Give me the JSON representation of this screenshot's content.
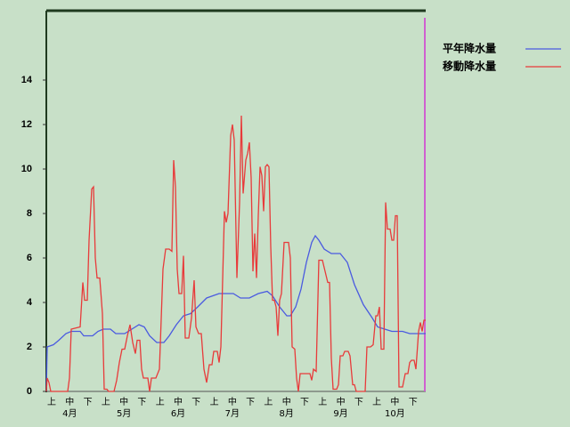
{
  "chart_data": {
    "type": "line",
    "legend": "top-right",
    "ylim": [
      0,
      17
    ],
    "yticks": [
      0,
      2,
      4,
      6,
      8,
      10,
      12,
      14
    ],
    "xlim": [
      0,
      213
    ],
    "categories": [
      "上",
      "中",
      "下",
      "上",
      "中",
      "下",
      "上",
      "中",
      "下",
      "上",
      "中",
      "下",
      "上",
      "中",
      "下",
      "上",
      "中",
      "下",
      "上",
      "中",
      "下"
    ],
    "months": [
      "4月",
      "5月",
      "6月",
      "7月",
      "8月",
      "9月",
      "10月"
    ],
    "series": [
      {
        "name": "平年降水量",
        "color": "#4a5ae0",
        "x": [
          0,
          0.5,
          4,
          7,
          11,
          14,
          19,
          21,
          26,
          29,
          32,
          36,
          39,
          44,
          48,
          52,
          55,
          58,
          62,
          66,
          69,
          73,
          77,
          81,
          85,
          90,
          97,
          105,
          109,
          114,
          119,
          124,
          127,
          131,
          135,
          137,
          140,
          143,
          146,
          149,
          151,
          153,
          156,
          160,
          165,
          169,
          173,
          178,
          183,
          186,
          190,
          194,
          200,
          204,
          213
        ],
        "values": [
          0,
          2.0,
          2.1,
          2.3,
          2.6,
          2.7,
          2.7,
          2.5,
          2.5,
          2.7,
          2.8,
          2.8,
          2.6,
          2.6,
          2.8,
          3.0,
          2.9,
          2.5,
          2.2,
          2.2,
          2.5,
          3.0,
          3.4,
          3.5,
          3.8,
          4.2,
          4.4,
          4.4,
          4.2,
          4.2,
          4.4,
          4.5,
          4.3,
          3.8,
          3.4,
          3.4,
          3.8,
          4.6,
          5.8,
          6.7,
          7.0,
          6.8,
          6.4,
          6.2,
          6.2,
          5.8,
          4.8,
          3.9,
          3.3,
          2.9,
          2.8,
          2.7,
          2.7,
          2.6,
          2.6
        ]
      },
      {
        "name": "移動降水量",
        "color": "#e83a3a",
        "x": [
          0,
          0.5,
          1.5,
          2.5,
          12,
          13,
          14,
          19,
          20.5,
          21.5,
          23,
          24,
          25.5,
          26.5,
          27.5,
          28.5,
          30,
          31.5,
          32.5,
          34,
          35,
          38,
          39.5,
          41,
          42.5,
          44,
          45.5,
          47,
          48.5,
          50,
          51,
          52.5,
          53.5,
          54.5,
          57,
          58,
          59,
          61.5,
          63.5,
          65.5,
          67,
          69,
          70.5,
          71.5,
          72.5,
          73.5,
          74.5,
          76,
          77,
          78,
          80,
          81.5,
          83,
          84,
          85.5,
          87,
          88.5,
          90,
          91.5,
          93,
          94,
          96,
          97,
          98,
          100,
          101,
          102,
          103.5,
          104.5,
          105.5,
          107,
          108.5,
          109.5,
          110.5,
          112,
          113,
          114,
          115,
          116,
          117,
          118,
          119,
          120,
          121,
          122,
          123,
          124,
          125,
          126,
          127,
          128,
          129,
          130,
          131,
          132,
          133.5,
          136,
          137,
          138,
          139.5,
          140.5,
          141.5,
          142.5,
          144,
          148,
          149,
          150,
          151.5,
          153,
          155,
          156.5,
          158,
          159,
          160,
          161,
          163,
          164,
          165,
          166.5,
          167.5,
          169.5,
          170.5,
          172,
          173,
          174,
          179,
          180,
          182,
          183.5,
          185,
          186,
          187,
          188,
          189.5,
          190.5,
          191.5,
          193,
          194,
          195,
          196,
          197,
          198,
          200,
          201.5,
          203,
          204,
          205,
          206.5,
          207.5,
          209,
          210,
          211,
          212,
          213
        ],
        "values": [
          0,
          0.6,
          0.4,
          0,
          0,
          0.6,
          2.8,
          2.9,
          4.9,
          4.1,
          4.1,
          6.8,
          9.1,
          9.2,
          6,
          5.1,
          5.1,
          3.5,
          0.1,
          0.1,
          0,
          0,
          0.5,
          1.3,
          1.9,
          1.9,
          2.5,
          3.0,
          2.2,
          1.7,
          2.3,
          2.3,
          1.0,
          0.6,
          0.6,
          0,
          0.6,
          0.6,
          1.0,
          5.5,
          6.4,
          6.4,
          6.3,
          10.4,
          9.2,
          5.5,
          4.4,
          4.4,
          6.1,
          2.4,
          2.4,
          3.3,
          5.0,
          2.9,
          2.6,
          2.6,
          1.0,
          0.4,
          1.2,
          1.2,
          1.8,
          1.8,
          1.3,
          2.0,
          8.1,
          7.6,
          8.0,
          11.5,
          12.0,
          11.3,
          5.1,
          8.5,
          12.4,
          8.9,
          10.4,
          10.7,
          11.2,
          9.6,
          5.4,
          7.1,
          5.1,
          7.9,
          10.1,
          9.7,
          8.1,
          10.1,
          10.2,
          10.1,
          6.5,
          4.1,
          4.1,
          3.8,
          2.5,
          4.1,
          4.4,
          6.7,
          6.7,
          6.0,
          2.0,
          1.9,
          0.6,
          0,
          0.8,
          0.8,
          0.8,
          0.5,
          1.0,
          0.9,
          5.9,
          5.9,
          5.4,
          4.9,
          4.9,
          1.5,
          0.1,
          0.1,
          0.3,
          1.6,
          1.6,
          1.8,
          1.8,
          1.6,
          0.3,
          0.3,
          0,
          0,
          2.0,
          2.0,
          2.1,
          3.4,
          3.4,
          3.8,
          1.9,
          1.9,
          8.5,
          7.3,
          7.3,
          6.8,
          6.8,
          7.9,
          7.9,
          0.2,
          0.2,
          0.8,
          0.8,
          1.3,
          1.4,
          1.4,
          1.0,
          2.7,
          3.1,
          2.7,
          3.2,
          3.2
        ]
      }
    ]
  }
}
